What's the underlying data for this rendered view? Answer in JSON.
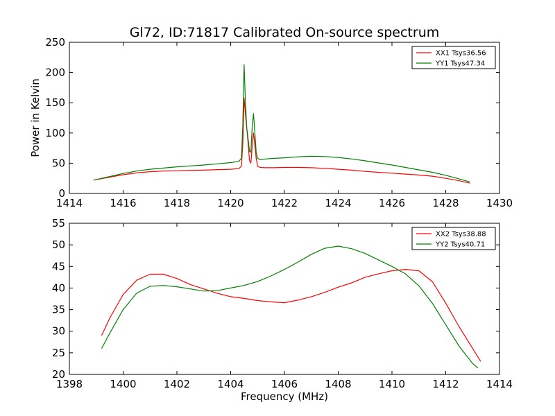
{
  "chart_data": [
    {
      "type": "line",
      "title": "Gl72, ID:71817 Calibrated On-source spectrum",
      "xlabel": "",
      "ylabel": "Power in Kelvin",
      "xlim": [
        1414,
        1430
      ],
      "ylim": [
        0,
        250
      ],
      "xticks": [
        "1414",
        "1416",
        "1418",
        "1420",
        "1422",
        "1424",
        "1426",
        "1428",
        "1430"
      ],
      "yticks": [
        "0",
        "50",
        "100",
        "150",
        "200",
        "250"
      ],
      "legend_position": "top-right",
      "series": [
        {
          "name": "XX1 Tsys36.56",
          "color": "#ff0000",
          "x": [
            1414.9,
            1415.5,
            1416,
            1416.5,
            1417,
            1417.5,
            1418,
            1418.5,
            1419,
            1419.5,
            1420,
            1420.3,
            1420.4,
            1420.45,
            1420.5,
            1420.55,
            1420.6,
            1420.65,
            1420.7,
            1420.75,
            1420.8,
            1420.85,
            1420.9,
            1420.95,
            1421,
            1421.1,
            1421.3,
            1421.6,
            1422,
            1422.5,
            1423,
            1423.5,
            1424,
            1424.5,
            1425,
            1425.5,
            1426,
            1426.5,
            1427,
            1427.5,
            1428,
            1428.5,
            1428.9
          ],
          "values": [
            22,
            27,
            31,
            34,
            36,
            37,
            37.5,
            38,
            38.5,
            39.5,
            40,
            41,
            45,
            80,
            158,
            130,
            108,
            82,
            55,
            50,
            78,
            100,
            80,
            58,
            45,
            43,
            42.5,
            42.5,
            43,
            43,
            42.5,
            41.5,
            40,
            38.5,
            36.5,
            35,
            33.5,
            32,
            30.5,
            28.5,
            25,
            21,
            17
          ]
        },
        {
          "name": "YY1 Tsys47.34",
          "color": "#008000",
          "x": [
            1414.9,
            1415.5,
            1416,
            1416.5,
            1417,
            1417.5,
            1418,
            1418.5,
            1419,
            1419.5,
            1420,
            1420.3,
            1420.4,
            1420.45,
            1420.5,
            1420.55,
            1420.6,
            1420.65,
            1420.7,
            1420.75,
            1420.8,
            1420.85,
            1420.9,
            1420.95,
            1421,
            1421.1,
            1421.3,
            1421.6,
            1422,
            1422.5,
            1423,
            1423.5,
            1424,
            1424.5,
            1425,
            1425.5,
            1426,
            1426.5,
            1427,
            1427.5,
            1428,
            1428.5,
            1428.9
          ],
          "values": [
            22,
            28,
            33,
            37,
            40,
            42,
            44,
            45.5,
            47,
            49,
            51,
            53,
            58,
            110,
            213,
            150,
            108,
            90,
            70,
            68,
            110,
            132,
            100,
            68,
            58,
            56,
            57,
            58,
            59,
            60.5,
            61.5,
            61,
            59.5,
            57,
            54,
            50.5,
            47,
            43,
            39,
            35,
            30,
            24,
            19
          ]
        }
      ]
    },
    {
      "type": "line",
      "title": "",
      "xlabel": "Frequency (MHz)",
      "ylabel": "",
      "xlim": [
        1398,
        1414
      ],
      "ylim": [
        20,
        55
      ],
      "xticks": [
        "1398",
        "1400",
        "1402",
        "1404",
        "1406",
        "1408",
        "1410",
        "1412",
        "1414"
      ],
      "yticks": [
        "20",
        "25",
        "30",
        "35",
        "40",
        "45",
        "50",
        "55"
      ],
      "legend_position": "top-right",
      "series": [
        {
          "name": "XX2 Tsys38.88",
          "color": "#ff0000",
          "x": [
            1399.2,
            1399.5,
            1400,
            1400.5,
            1401,
            1401.5,
            1402,
            1402.5,
            1403,
            1403.5,
            1404,
            1404.5,
            1405,
            1405.5,
            1406,
            1406.5,
            1407,
            1407.5,
            1408,
            1408.5,
            1409,
            1409.5,
            1410,
            1410.5,
            1411,
            1411.5,
            1412,
            1412.5,
            1413,
            1413.3
          ],
          "values": [
            29,
            33,
            38.5,
            41.8,
            43.2,
            43.2,
            42.2,
            40.8,
            39.8,
            38.8,
            38,
            37.6,
            37.1,
            36.8,
            36.6,
            37.2,
            38,
            39,
            40.2,
            41.2,
            42.5,
            43.3,
            44,
            44.3,
            44,
            41.5,
            36.5,
            31,
            26,
            23
          ]
        },
        {
          "name": "YY2 Tsys40.71",
          "color": "#008000",
          "x": [
            1399.2,
            1399.5,
            1400,
            1400.5,
            1401,
            1401.5,
            1402,
            1402.5,
            1403,
            1403.5,
            1404,
            1404.5,
            1405,
            1405.5,
            1406,
            1406.5,
            1407,
            1407.5,
            1408,
            1408.5,
            1409,
            1409.5,
            1410,
            1410.5,
            1411,
            1411.5,
            1412,
            1412.5,
            1413,
            1413.2
          ],
          "values": [
            26,
            29.5,
            35,
            38.8,
            40.4,
            40.6,
            40.3,
            39.8,
            39.3,
            39.4,
            40,
            40.6,
            41.5,
            42.8,
            44.3,
            46,
            47.8,
            49.2,
            49.7,
            49.1,
            48,
            46.5,
            45,
            43.3,
            40.5,
            36.5,
            31.5,
            26.5,
            22.5,
            21.5
          ]
        }
      ]
    }
  ]
}
